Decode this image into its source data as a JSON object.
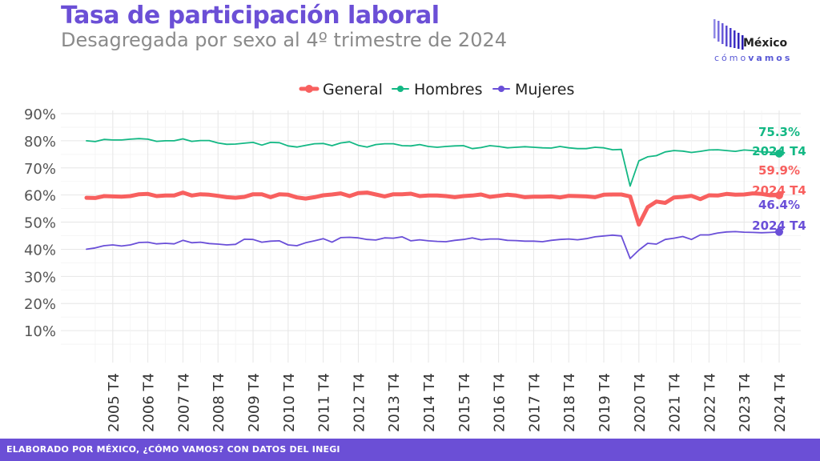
{
  "header": {
    "title": "Tasa de participación laboral",
    "subtitle": "Desagregada por sexo al 4º trimestre de 2024"
  },
  "logo": {
    "name": "México",
    "tagline_light": "cómo",
    "tagline_bold": "vamos"
  },
  "footer": {
    "text": "ELABORADO POR MÉXICO, ¿CÓMO VAMOS? CON DATOS DEL INEGI"
  },
  "colors": {
    "title": "#6b4fd6",
    "general": "#f8605f",
    "hombres": "#13b884",
    "mujeres": "#6a4fd8",
    "footer_bg": "#6b4fd6"
  },
  "chart_data": {
    "type": "line",
    "xlabel": "",
    "ylabel": "",
    "ylim": [
      0,
      90
    ],
    "y_ticks": [
      "10%",
      "20%",
      "30%",
      "40%",
      "50%",
      "60%",
      "70%",
      "80%",
      "90%"
    ],
    "y_tick_values": [
      10,
      20,
      30,
      40,
      50,
      60,
      70,
      80,
      90
    ],
    "x_start_quarter": "2005 T1",
    "x_end_quarter": "2024 T4",
    "x_tick_labels": [
      "2005 T4",
      "2006 T4",
      "2007 T4",
      "2008 T4",
      "2009 T4",
      "2010 T4",
      "2011 T4",
      "2012 T4",
      "2013 T4",
      "2014 T4",
      "2015 T4",
      "2016 T4",
      "2017 T4",
      "2018 T4",
      "2019 T4",
      "2020 T4",
      "2021 T4",
      "2022 T4",
      "2023 T4",
      "2024 T4"
    ],
    "grid": true,
    "legend_position": "top-center",
    "series": [
      {
        "name": "General",
        "color": "#f8605f",
        "values": [
          59.0,
          58.9,
          59.6,
          59.5,
          59.4,
          59.6,
          60.3,
          60.4,
          59.6,
          59.8,
          59.8,
          60.9,
          59.8,
          60.3,
          60.1,
          59.7,
          59.2,
          59.0,
          59.3,
          60.3,
          60.3,
          59.2,
          60.3,
          60.1,
          59.1,
          58.7,
          59.2,
          59.9,
          60.2,
          60.6,
          59.6,
          60.7,
          60.9,
          60.2,
          59.5,
          60.3,
          60.3,
          60.5,
          59.6,
          59.8,
          59.8,
          59.6,
          59.2,
          59.6,
          59.8,
          60.2,
          59.3,
          59.7,
          60.1,
          59.8,
          59.2,
          59.4,
          59.4,
          59.5,
          59.1,
          59.7,
          59.6,
          59.5,
          59.2,
          60.1,
          60.2,
          60.2,
          59.5,
          49.1,
          55.5,
          57.6,
          57.1,
          59.1,
          59.3,
          59.7,
          58.5,
          59.9,
          59.8,
          60.4,
          60.1,
          60.2,
          60.6,
          60.4,
          59.9,
          59.9
        ],
        "end_label": "59.9%",
        "end_period_label": "2024 T4"
      },
      {
        "name": "Hombres",
        "color": "#13b884",
        "values": [
          80.0,
          79.7,
          80.5,
          80.3,
          80.3,
          80.6,
          80.8,
          80.6,
          79.8,
          80.0,
          80.0,
          80.7,
          79.8,
          80.1,
          80.1,
          79.2,
          78.7,
          78.8,
          79.1,
          79.4,
          78.4,
          79.4,
          79.3,
          78.1,
          77.7,
          78.3,
          78.9,
          79.0,
          78.2,
          79.2,
          79.6,
          78.3,
          77.7,
          78.6,
          78.9,
          78.9,
          78.2,
          78.1,
          78.6,
          77.9,
          77.6,
          77.9,
          78.1,
          78.2,
          77.1,
          77.5,
          78.2,
          77.9,
          77.4,
          77.6,
          77.8,
          77.6,
          77.4,
          77.3,
          77.9,
          77.4,
          77.1,
          77.1,
          77.6,
          77.4,
          76.7,
          76.8,
          63.3,
          72.6,
          74.1,
          74.5,
          75.9,
          76.4,
          76.2,
          75.7,
          76.1,
          76.6,
          76.7,
          76.4,
          76.1,
          76.6,
          76.4,
          75.9,
          75.8,
          75.3
        ],
        "end_label": "75.3%",
        "end_period_label": "2024 T4"
      },
      {
        "name": "Mujeres",
        "color": "#6a4fd8",
        "values": [
          40.0,
          40.5,
          41.3,
          41.6,
          41.2,
          41.6,
          42.5,
          42.6,
          42.0,
          42.2,
          42.0,
          43.3,
          42.4,
          42.6,
          42.1,
          41.9,
          41.6,
          41.8,
          43.7,
          43.6,
          42.6,
          43.0,
          43.1,
          41.6,
          41.3,
          42.4,
          43.1,
          43.9,
          42.6,
          44.3,
          44.4,
          44.2,
          43.6,
          43.4,
          44.2,
          44.1,
          44.6,
          43.1,
          43.5,
          43.1,
          42.9,
          42.8,
          43.3,
          43.6,
          44.2,
          43.5,
          43.8,
          43.8,
          43.3,
          43.2,
          43.0,
          43.0,
          42.8,
          43.3,
          43.6,
          43.8,
          43.5,
          43.9,
          44.6,
          44.9,
          45.2,
          44.9,
          36.6,
          39.7,
          42.2,
          41.9,
          43.6,
          44.1,
          44.7,
          43.6,
          45.3,
          45.3,
          46.0,
          46.4,
          46.5,
          46.3,
          46.2,
          46.1,
          46.2,
          46.4
        ],
        "end_label": "46.4%",
        "end_period_label": "2024 T4"
      }
    ]
  }
}
